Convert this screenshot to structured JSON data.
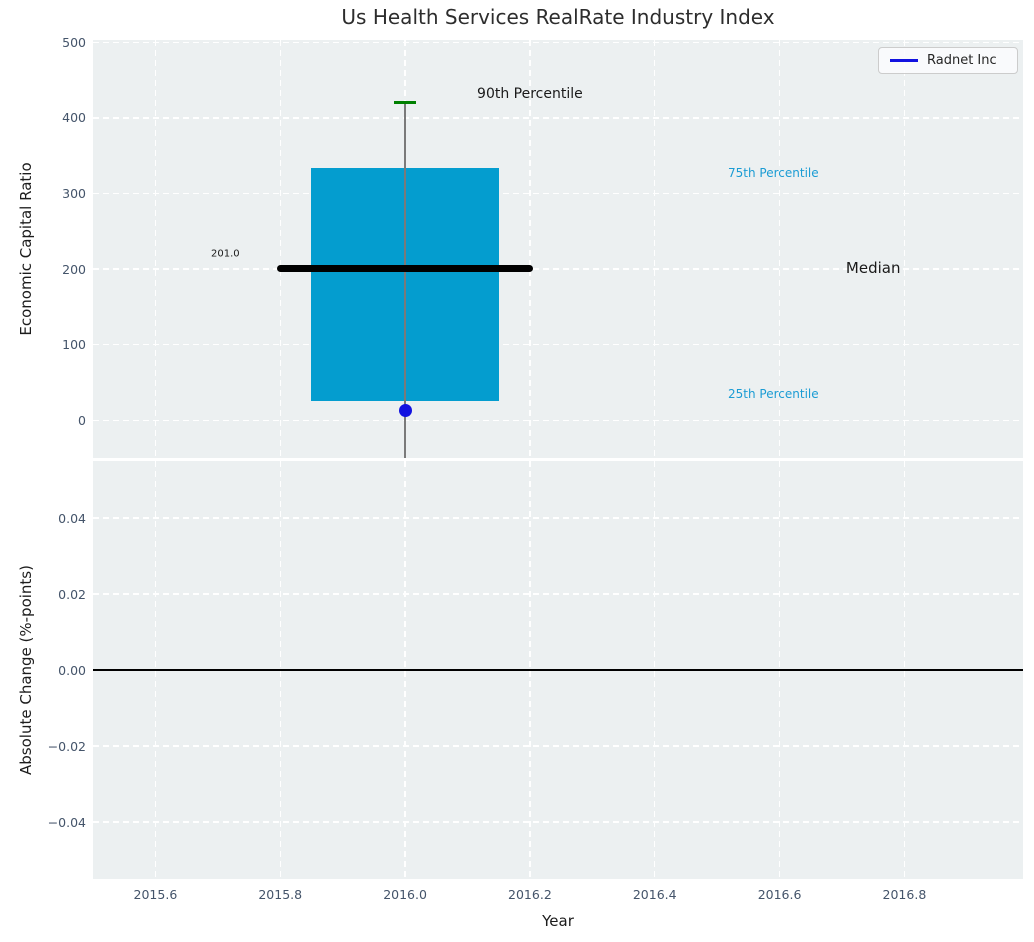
{
  "chart_data": {
    "type": "boxplot",
    "title": "Us Health Services RealRate Industry Index",
    "xlabel": "Year",
    "xlim": [
      2015.5,
      2016.99
    ],
    "xtick_values": [
      2015.6,
      2015.8,
      2016.0,
      2016.2,
      2016.4,
      2016.6,
      2016.8
    ],
    "xtick_labels": [
      "2015.6",
      "2015.8",
      "2016.0",
      "2016.2",
      "2016.4",
      "2016.6",
      "2016.8"
    ],
    "grid": "white dashed on light background",
    "legend": {
      "label": "Radnet Inc",
      "position": "upper right"
    },
    "colors": {
      "plot_background": "#ecf0f1",
      "grid": "#ffffff",
      "box_fill": "#049dcf",
      "median_line": "#000000",
      "whisker": "#7a7a7a",
      "percentile_cap": "#008000",
      "company_marker": "#1212e0",
      "legend_line": "#1212e0",
      "annotation_cyan": "#1b9cd4",
      "annotation_black": "#1a1a1a",
      "tick_label": "#44546a",
      "zero_line": "#000000"
    },
    "panels": [
      {
        "ylabel": "Economic Capital Ratio",
        "ylim": [
          -50,
          503
        ],
        "ytick_values": [
          0,
          100,
          200,
          300,
          400,
          500
        ],
        "ytick_labels": [
          "0",
          "100",
          "200",
          "300",
          "400",
          "500"
        ],
        "boxplot": {
          "x": 2016.0,
          "box_halfwidth": 0.15,
          "median_halfwidth": 0.205,
          "cap_halfwidth": 0.017,
          "q25": 26,
          "q75": 334,
          "median": 201,
          "p90": 420,
          "whisker_low_clipped": true,
          "company_value": 13
        },
        "annotations": [
          {
            "text": "201.0",
            "x": 2015.712,
            "y": 220,
            "color": "#1a1a1a",
            "size": 10
          },
          {
            "text": "90th Percentile",
            "x": 2016.2,
            "y": 432,
            "color": "#1a1a1a",
            "size": 14
          },
          {
            "text": "75th Percentile",
            "x": 2016.59,
            "y": 327,
            "color": "#1b9cd4",
            "size": 12
          },
          {
            "text": "Median",
            "x": 2016.75,
            "y": 201,
            "color": "#1a1a1a",
            "size": 15
          },
          {
            "text": "25th Percentile",
            "x": 2016.59,
            "y": 35,
            "color": "#1b9cd4",
            "size": 12
          }
        ]
      },
      {
        "ylabel": "Absolute Change (%-points)",
        "ylim": [
          -0.055,
          0.055
        ],
        "ytick_values": [
          0.04,
          0.02,
          0.0,
          -0.02,
          -0.04
        ],
        "ytick_labels": [
          "0.04",
          "0.02",
          "0.00",
          "−0.02",
          "−0.04"
        ],
        "zero_line_value": 0.0
      }
    ]
  }
}
